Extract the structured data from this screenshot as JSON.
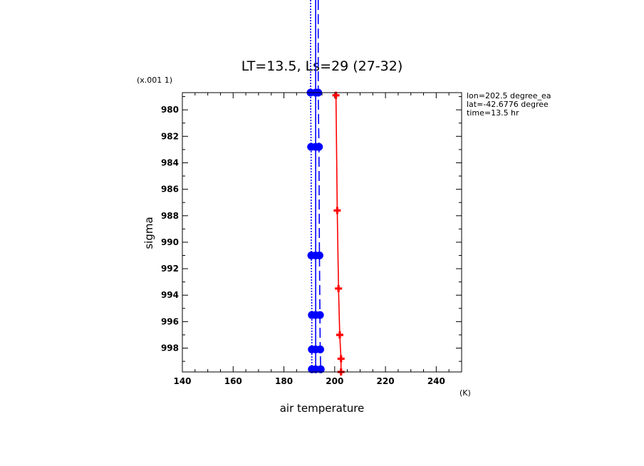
{
  "chart_data": {
    "type": "line",
    "title": "LT=13.5, Ls=29 (27-32)",
    "xlabel": "air temperature",
    "ylabel": "sigma",
    "x_unit": "(K)",
    "y_scale_note": "(x.001 1)",
    "xlim": [
      140,
      250
    ],
    "ylim": [
      999.8,
      978.7
    ],
    "y_inverted": true,
    "x_ticks": [
      "140",
      "160",
      "180",
      "200",
      "220",
      "240"
    ],
    "y_ticks": [
      "980",
      "982",
      "984",
      "986",
      "988",
      "990",
      "992",
      "994",
      "996",
      "998"
    ],
    "annotation": [
      "lon=202.5 degree_ea",
      "lat=-42.6776 degree",
      "time=13.5 hr"
    ],
    "series": [
      {
        "color": "#ff0000",
        "line": "solid",
        "marker": "plus",
        "points": [
          [
            200.5,
            978.9
          ],
          [
            201.0,
            987.6
          ],
          [
            201.5,
            993.5
          ],
          [
            202.0,
            997.0
          ],
          [
            202.5,
            998.8
          ],
          [
            202.5,
            999.8
          ]
        ]
      },
      {
        "color": "#0000ff",
        "line": "solid",
        "marker": "circle",
        "extends_above": true,
        "points": [
          [
            192.5,
            978.7
          ],
          [
            192.5,
            982.8
          ],
          [
            192.5,
            991.0
          ],
          [
            192.5,
            995.5
          ],
          [
            192.5,
            998.1
          ],
          [
            192.5,
            999.6
          ]
        ]
      },
      {
        "color": "#0000ff",
        "line": "dotted",
        "marker": "circle",
        "extends_above": true,
        "points": [
          [
            190.5,
            978.7
          ],
          [
            190.7,
            982.8
          ],
          [
            190.8,
            991.0
          ],
          [
            191.0,
            995.5
          ],
          [
            191.0,
            998.1
          ],
          [
            191.0,
            999.6
          ]
        ]
      },
      {
        "color": "#0000ff",
        "line": "dashed",
        "marker": "circle",
        "extends_above": true,
        "points": [
          [
            193.5,
            978.7
          ],
          [
            193.8,
            982.8
          ],
          [
            194.0,
            991.0
          ],
          [
            194.2,
            995.5
          ],
          [
            194.3,
            998.1
          ],
          [
            194.5,
            999.6
          ]
        ]
      }
    ]
  }
}
